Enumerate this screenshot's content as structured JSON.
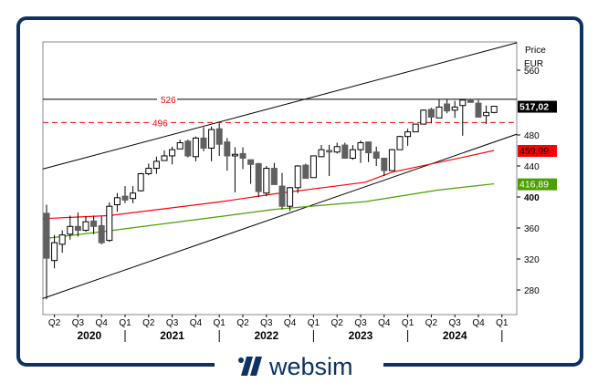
{
  "brand": {
    "name": "websim",
    "color": "#0d3263"
  },
  "chart_data": {
    "type": "candlestick",
    "title": "",
    "currency_label": "EUR",
    "axis_title": "Price",
    "start_month": "2020-03",
    "interval": "monthly",
    "ylim": [
      260,
      580
    ],
    "y_ticks": [
      {
        "value": 560,
        "label": "560",
        "bold": false
      },
      {
        "value": 480,
        "label": "480",
        "bold": false
      },
      {
        "value": 440,
        "label": "440",
        "bold": false
      },
      {
        "value": 400,
        "label": "400",
        "bold": true
      },
      {
        "value": 360,
        "label": "360",
        "bold": false
      },
      {
        "value": 320,
        "label": "320",
        "bold": false
      },
      {
        "value": 280,
        "label": "280",
        "bold": false
      }
    ],
    "quarter_ticks": [
      "Q2",
      "Q3",
      "Q4",
      "Q1",
      "Q2",
      "Q3",
      "Q4",
      "Q1",
      "Q2",
      "Q3",
      "Q4",
      "Q1",
      "Q2",
      "Q3",
      "Q4",
      "Q1",
      "Q2",
      "Q3",
      "Q4",
      "Q1"
    ],
    "years": [
      "2020",
      "2021",
      "2022",
      "2023",
      "2024"
    ],
    "ohlc": [
      [
        379,
        390,
        268,
        321
      ],
      [
        318,
        351,
        308,
        341
      ],
      [
        339,
        357,
        328,
        351
      ],
      [
        352,
        376,
        345,
        362
      ],
      [
        362,
        380,
        349,
        357
      ],
      [
        357,
        375,
        355,
        368
      ],
      [
        369,
        376,
        352,
        362
      ],
      [
        363,
        375,
        339,
        341
      ],
      [
        344,
        393,
        342,
        388
      ],
      [
        390,
        405,
        381,
        399
      ],
      [
        401,
        414,
        392,
        396
      ],
      [
        398,
        414,
        392,
        405
      ],
      [
        408,
        431,
        407,
        430
      ],
      [
        430,
        443,
        428,
        437
      ],
      [
        437,
        452,
        430,
        446
      ],
      [
        447,
        460,
        447,
        453
      ],
      [
        453,
        465,
        442,
        461
      ],
      [
        462,
        474,
        462,
        470
      ],
      [
        472,
        474,
        451,
        453
      ],
      [
        452,
        478,
        446,
        476
      ],
      [
        476,
        490,
        459,
        463
      ],
      [
        463,
        491,
        446,
        487
      ],
      [
        488,
        495,
        453,
        468
      ],
      [
        471,
        476,
        434,
        453
      ],
      [
        453,
        464,
        406,
        455
      ],
      [
        456,
        464,
        436,
        450
      ],
      [
        448,
        448,
        417,
        442
      ],
      [
        443,
        444,
        400,
        407
      ],
      [
        405,
        440,
        401,
        437
      ],
      [
        437,
        444,
        416,
        416
      ],
      [
        414,
        431,
        384,
        388
      ],
      [
        388,
        413,
        382,
        412
      ],
      [
        412,
        441,
        405,
        440
      ],
      [
        441,
        443,
        424,
        424
      ],
      [
        425,
        453,
        425,
        453
      ],
      [
        452,
        467,
        452,
        461
      ],
      [
        460,
        467,
        427,
        458
      ],
      [
        458,
        470,
        456,
        465
      ],
      [
        467,
        470,
        450,
        450
      ],
      [
        450,
        467,
        448,
        461
      ],
      [
        461,
        473,
        444,
        470
      ],
      [
        471,
        471,
        445,
        457
      ],
      [
        458,
        465,
        440,
        450
      ],
      [
        450,
        450,
        427,
        434
      ],
      [
        434,
        462,
        434,
        461
      ],
      [
        461,
        479,
        461,
        478
      ],
      [
        478,
        488,
        466,
        484
      ],
      [
        484,
        494,
        484,
        494
      ],
      [
        494,
        513,
        494,
        512
      ],
      [
        513,
        515,
        495,
        503
      ],
      [
        502,
        526,
        502,
        516
      ],
      [
        520,
        526,
        508,
        511
      ],
      [
        512,
        524,
        502,
        516
      ],
      [
        518,
        525,
        479,
        525
      ],
      [
        526,
        527,
        522,
        522
      ],
      [
        521,
        525,
        503,
        503
      ],
      [
        505,
        518,
        494,
        509
      ],
      [
        509,
        517,
        508,
        517.02
      ]
    ],
    "moving_averages": [
      {
        "name": "MA red",
        "color": "#ff0000",
        "last_label": "459,99",
        "last_value": 459.99,
        "points": [
          [
            -0.5,
            372
          ],
          [
            8,
            376
          ],
          [
            22.3,
            394
          ],
          [
            29,
            404
          ],
          [
            40.6,
            419
          ],
          [
            44,
            432
          ],
          [
            53.4,
            452
          ],
          [
            57,
            460
          ]
        ]
      },
      {
        "name": "MA green",
        "color": "#4aa000",
        "last_label": "416,89",
        "last_value": 416.89,
        "points": [
          [
            -0.5,
            346
          ],
          [
            6.9,
            355
          ],
          [
            22.3,
            375
          ],
          [
            29,
            384
          ],
          [
            40.6,
            394
          ],
          [
            49.9,
            409
          ],
          [
            57,
            417
          ]
        ]
      }
    ],
    "last_price": {
      "value": 517.02,
      "label": "517,02"
    },
    "horizontal_levels": [
      {
        "value": 526,
        "label": "526",
        "style": "solid",
        "color": "#000000"
      },
      {
        "value": 496,
        "label": "496",
        "style": "dashed",
        "color": "#ff0000"
      }
    ],
    "trend_channel": [
      {
        "name": "upper",
        "points": [
          [
            -0.5,
            436
          ],
          [
            59.9,
            599
          ]
        ]
      },
      {
        "name": "lower",
        "points": [
          [
            -0.5,
            269
          ],
          [
            59.9,
            481
          ]
        ]
      }
    ]
  }
}
